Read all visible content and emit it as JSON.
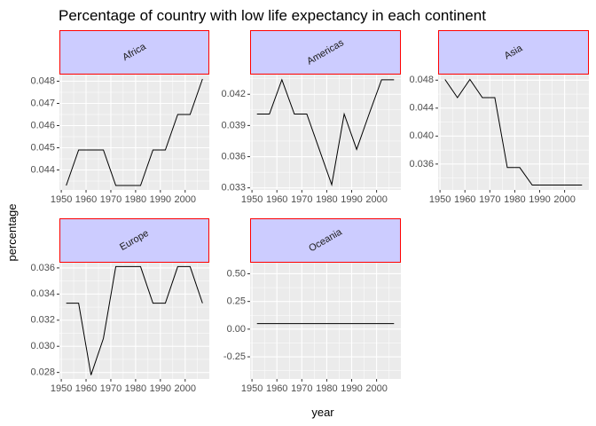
{
  "chart_data": {
    "type": "line",
    "title": "Percentage of country with low life expectancy in each continent",
    "xlabel": "year",
    "ylabel": "percentage",
    "x": [
      1952,
      1957,
      1962,
      1967,
      1972,
      1977,
      1982,
      1987,
      1992,
      1997,
      2002,
      2007
    ],
    "xlim": [
      1949.25,
      2009.75
    ],
    "xticks": [
      1950,
      1960,
      1970,
      1980,
      1990,
      2000
    ],
    "xtick_labels": [
      "1950",
      "1960",
      "1970",
      "1980",
      "1990",
      "2000"
    ],
    "grid": true,
    "facets": [
      {
        "name": "Africa",
        "values": [
          0.0433,
          0.0449,
          0.0449,
          0.0449,
          0.0433,
          0.0433,
          0.0433,
          0.0449,
          0.0449,
          0.0465,
          0.0465,
          0.0481
        ],
        "ylim": [
          0.0431,
          0.0483
        ],
        "yticks": [
          0.044,
          0.045,
          0.046,
          0.047,
          0.048
        ],
        "ytick_labels": [
          "0.044",
          "0.045",
          "0.046",
          "0.047",
          "0.048"
        ]
      },
      {
        "name": "Americas",
        "values": [
          0.0401,
          0.0401,
          0.0434,
          0.0401,
          0.0401,
          0.0367,
          0.0333,
          0.0401,
          0.0367,
          0.0401,
          0.0434,
          0.0434
        ],
        "ylim": [
          0.0328,
          0.0439
        ],
        "yticks": [
          0.033,
          0.036,
          0.039,
          0.042
        ],
        "ytick_labels": [
          "0.033",
          "0.036",
          "0.039",
          "0.042"
        ]
      },
      {
        "name": "Asia",
        "values": [
          0.0481,
          0.0455,
          0.0481,
          0.0455,
          0.0455,
          0.0355,
          0.0355,
          0.033,
          0.033,
          0.033,
          0.033,
          0.033
        ],
        "ylim": [
          0.0323,
          0.0488
        ],
        "yticks": [
          0.036,
          0.04,
          0.044,
          0.048
        ],
        "ytick_labels": [
          "0.036",
          "0.040",
          "0.044",
          "0.048"
        ]
      },
      {
        "name": "Europe",
        "values": [
          0.0333,
          0.0333,
          0.0278,
          0.0306,
          0.0361,
          0.0361,
          0.0361,
          0.0333,
          0.0333,
          0.0361,
          0.0361,
          0.0333
        ],
        "ylim": [
          0.0275,
          0.0364
        ],
        "yticks": [
          0.028,
          0.03,
          0.032,
          0.034,
          0.036
        ],
        "ytick_labels": [
          "0.028",
          "0.030",
          "0.032",
          "0.034",
          "0.036"
        ]
      },
      {
        "name": "Oceania",
        "values": [
          0.05,
          0.05,
          0.05,
          0.05,
          0.05,
          0.05,
          0.05,
          0.05,
          0.05,
          0.05,
          0.05,
          0.05
        ],
        "ylim": [
          -0.45,
          0.6
        ],
        "yticks": [
          -0.25,
          0.0,
          0.25,
          0.5
        ],
        "ytick_labels": [
          "-0.25",
          "0.00",
          "0.25",
          "0.50"
        ]
      }
    ]
  }
}
